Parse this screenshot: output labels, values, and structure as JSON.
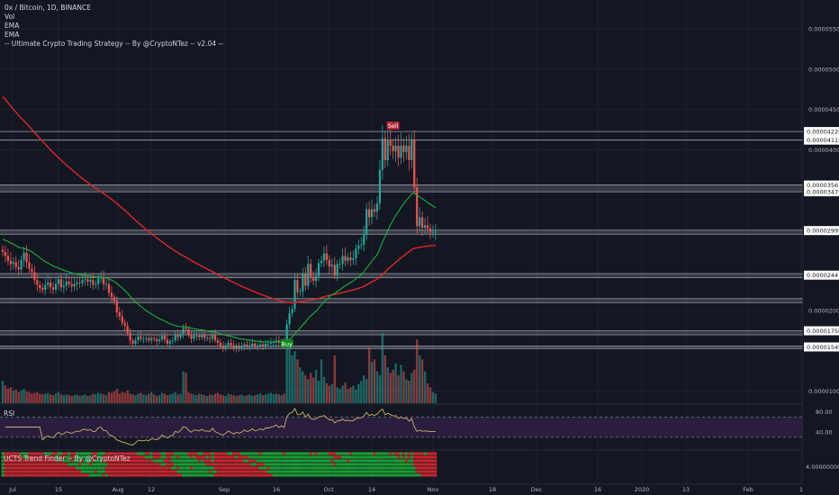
{
  "legend": {
    "title": "0x / Bitcoin, 1D, BINANCE",
    "vol": "Vol",
    "ema1": "EMA",
    "ema2": "EMA",
    "strategy": "-- Ultimate Crypto Trading Strategy -- By @CryptoNTez -- v2.04 --"
  },
  "rsi_label": "RSI",
  "trend_label": "UCTS Trend Finder -- By @CryptoNTez",
  "colors": {
    "background": "#131722",
    "up": "#26a69a",
    "down": "#ef5350",
    "ema_slow": "#e0262a",
    "ema_fast": "#1fae3f",
    "level_line": "#d1d4dc",
    "rsi_line": "#c9b46a",
    "rsi_band": "#2a1d3d"
  },
  "chart_data": [
    {
      "type": "candlestick",
      "title": "0x / Bitcoin, 1D, BINANCE",
      "y_ticks": [
        "0.00005500",
        "0.00005000",
        "0.00004500",
        "0.00004000",
        "0.00002000",
        "0.00001000"
      ],
      "y_tick_values": [
        5.5e-05,
        5e-05,
        4.5e-05,
        4e-05,
        2e-05,
        1e-05
      ],
      "x_ticks": [
        "Jul",
        "15",
        "Aug",
        "12",
        "Sep",
        "16",
        "Oct",
        "14",
        "Nov",
        "18",
        "Dec",
        "16",
        "2020",
        "13",
        "Feb",
        "1"
      ],
      "ylim": [
        8.5e-06,
        5.86e-05
      ],
      "price_tags": [
        {
          "label": "0.00004226",
          "value": 4.226e-05
        },
        {
          "label": "0.00004119",
          "value": 4.119e-05
        },
        {
          "label": "0.00003561",
          "value": 3.561e-05
        },
        {
          "label": "0.00003477",
          "value": 3.477e-05
        },
        {
          "label": "0.00002995",
          "value": 2.995e-05
        },
        {
          "label": "0.00002441",
          "value": 2.441e-05
        },
        {
          "label": "0.00001750",
          "value": 1.75e-05
        },
        {
          "label": "0.00001549",
          "value": 1.549e-05
        }
      ],
      "horizontal_levels": [
        4.226e-05,
        4.119e-05,
        3.561e-05,
        3.477e-05,
        3e-05,
        2.95e-05,
        2.46e-05,
        2.41e-05,
        2.15e-05,
        2.1e-05,
        1.75e-05,
        1.7e-05,
        1.56e-05,
        1.53e-05
      ],
      "signals": [
        {
          "label": "Buy",
          "date_index": 107,
          "price": 1.63e-05
        },
        {
          "label": "Sell",
          "date_index": 147,
          "price": 4.25e-05
        }
      ],
      "closes": [
        2.73e-05,
        2.68e-05,
        2.62e-05,
        2.58e-05,
        2.6e-05,
        2.54e-05,
        2.51e-05,
        2.63e-05,
        2.72e-05,
        2.6e-05,
        2.52e-05,
        2.48e-05,
        2.38e-05,
        2.32e-05,
        2.28e-05,
        2.26e-05,
        2.32e-05,
        2.35e-05,
        2.29e-05,
        2.26e-05,
        2.33e-05,
        2.39e-05,
        2.29e-05,
        2.31e-05,
        2.36e-05,
        2.33e-05,
        2.3e-05,
        2.33e-05,
        2.35e-05,
        2.34e-05,
        2.38e-05,
        2.39e-05,
        2.36e-05,
        2.38e-05,
        2.32e-05,
        2.33e-05,
        2.4e-05,
        2.41e-05,
        2.33e-05,
        2.33e-05,
        2.22e-05,
        2.17e-05,
        2.12e-05,
        1.98e-05,
        1.93e-05,
        1.85e-05,
        1.81e-05,
        1.72e-05,
        1.63e-05,
        1.59e-05,
        1.63e-05,
        1.68e-05,
        1.65e-05,
        1.65e-05,
        1.66e-05,
        1.63e-05,
        1.66e-05,
        1.65e-05,
        1.62e-05,
        1.64e-05,
        1.69e-05,
        1.64e-05,
        1.59e-05,
        1.62e-05,
        1.63e-05,
        1.7e-05,
        1.67e-05,
        1.71e-05,
        1.78e-05,
        1.77e-05,
        1.7e-05,
        1.65e-05,
        1.69e-05,
        1.69e-05,
        1.67e-05,
        1.7e-05,
        1.66e-05,
        1.66e-05,
        1.65e-05,
        1.7e-05,
        1.63e-05,
        1.6e-05,
        1.56e-05,
        1.54e-05,
        1.57e-05,
        1.6e-05,
        1.57e-05,
        1.53e-05,
        1.56e-05,
        1.53e-05,
        1.55e-05,
        1.58e-05,
        1.55e-05,
        1.56e-05,
        1.59e-05,
        1.55e-05,
        1.56e-05,
        1.58e-05,
        1.56e-05,
        1.59e-05,
        1.59e-05,
        1.6e-05,
        1.61e-05,
        1.63e-05,
        1.6e-05,
        1.62e-05,
        1.6e-05,
        1.83e-05,
        1.97e-05,
        2.02e-05,
        2.38e-05,
        2.23e-05,
        2.24e-05,
        2.46e-05,
        2.31e-05,
        2.58e-05,
        2.42e-05,
        2.37e-05,
        2.43e-05,
        2.59e-05,
        2.62e-05,
        2.71e-05,
        2.63e-05,
        2.55e-05,
        2.57e-05,
        2.44e-05,
        2.58e-05,
        2.58e-05,
        2.68e-05,
        2.62e-05,
        2.66e-05,
        2.63e-05,
        2.65e-05,
        2.77e-05,
        2.81e-05,
        2.82e-05,
        2.94e-05,
        3.26e-05,
        3.16e-05,
        3.26e-05,
        3.23e-05,
        3.33e-05,
        3.75e-05,
        4.14e-05,
        3.87e-05,
        4.12e-05,
        4.05e-05,
        3.98e-05,
        4.05e-05,
        3.9e-05,
        4.05e-05,
        3.97e-05,
        4.05e-05,
        3.87e-05,
        4.13e-05,
        3.53e-05,
        3.05e-05,
        3.16e-05,
        3.03e-05,
        3.06e-05,
        3.02e-05,
        2.98e-05,
        2.98e-05,
        2.98e-05
      ]
    },
    {
      "type": "bar",
      "title": "Vol",
      "y_ticks": [],
      "note": "volume histogram, values in relative units",
      "values": [
        28,
        22,
        18,
        20,
        16,
        17,
        14,
        16,
        18,
        15,
        14,
        12,
        13,
        14,
        12,
        11,
        12,
        13,
        11,
        10,
        12,
        14,
        11,
        10,
        11,
        10,
        9,
        10,
        11,
        9,
        10,
        11,
        9,
        10,
        12,
        11,
        13,
        12,
        11,
        10,
        14,
        13,
        15,
        18,
        12,
        14,
        13,
        16,
        12,
        11,
        10,
        12,
        13,
        11,
        10,
        12,
        14,
        11,
        9,
        10,
        13,
        12,
        10,
        11,
        12,
        14,
        11,
        12,
        40,
        38,
        14,
        12,
        11,
        10,
        12,
        11,
        10,
        9,
        11,
        10,
        12,
        13,
        11,
        10,
        9,
        12,
        11,
        10,
        9,
        10,
        11,
        9,
        10,
        11,
        9,
        10,
        11,
        12,
        10,
        11,
        12,
        13,
        11,
        12,
        11,
        10,
        12,
        85,
        70,
        60,
        65,
        55,
        45,
        40,
        35,
        30,
        38,
        32,
        42,
        28,
        55,
        33,
        25,
        22,
        24,
        60,
        20,
        18,
        22,
        26,
        18,
        20,
        22,
        17,
        24,
        28,
        35,
        30,
        70,
        52,
        55,
        40,
        35,
        88,
        60,
        45,
        38,
        42,
        50,
        35,
        48,
        40,
        30,
        28,
        38,
        42,
        80,
        60,
        55,
        40,
        25,
        20,
        14,
        12
      ]
    },
    {
      "type": "line",
      "title": "RSI",
      "y_ticks": [
        "80.00",
        "40.00"
      ],
      "y_tick_values": [
        80,
        40
      ],
      "ylim": [
        10,
        90
      ],
      "bands": [
        70,
        30
      ]
    },
    {
      "type": "bar",
      "title": "UCTS Trend Finder -- By @CryptoNTez",
      "y_ticks": [
        "4.00000000"
      ],
      "y_tick_values": [
        4
      ],
      "ylim": [
        0,
        6
      ]
    }
  ]
}
